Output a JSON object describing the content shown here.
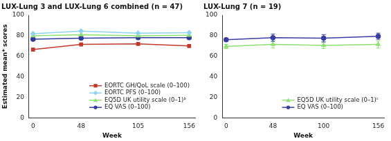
{
  "chart_data": [
    {
      "type": "line",
      "title": "LUX-Lung 3 and LUX-Lung 6 combined (n = 47)",
      "x_label": "Week",
      "y_label": "Estimated mean* scores",
      "x": [
        0,
        48,
        105,
        156
      ],
      "xlim": [
        -4,
        162
      ],
      "xticks": [
        0,
        48,
        105,
        156
      ],
      "ylim": [
        0,
        100
      ],
      "yticks": [
        0,
        20,
        40,
        60,
        80,
        100
      ],
      "grid": false,
      "legend": "lower right",
      "series": [
        {
          "name": "EORTC GH/QoL scale (0–100)",
          "color": "#c0392b",
          "marker": "square",
          "values": [
            66.5,
            71.5,
            72,
            70
          ]
        },
        {
          "name": "EORTC PFS (0–100)",
          "color": "#8fd3f0",
          "marker": "diamond",
          "values": [
            82,
            84.5,
            82.5,
            83
          ]
        },
        {
          "name": "EQ5D UK utility scale (0–1)ᵇ",
          "color": "#8ee070",
          "marker": "triangle",
          "values": [
            80,
            81,
            80,
            80.5
          ]
        },
        {
          "name": "EQ VAS (0–100)",
          "color": "#2e3c9a",
          "marker": "circle",
          "values": [
            76.5,
            77.5,
            78,
            78
          ]
        }
      ]
    },
    {
      "type": "line",
      "title": "LUX-Lung 7 (n = 19)",
      "x_label": "Week",
      "x": [
        0,
        48,
        100,
        156
      ],
      "xlim": [
        -4,
        162
      ],
      "xticks": [
        0,
        48,
        100,
        156
      ],
      "ylim": [
        0,
        100
      ],
      "yticks": [
        0,
        20,
        40,
        60,
        80,
        100
      ],
      "grid": false,
      "legend": "lower right",
      "series": [
        {
          "name": "EQ5D UK utility scale (0–1)ᶜ",
          "color": "#8ee070",
          "marker": "triangle",
          "values": [
            69.5,
            71.5,
            70.5,
            71.5
          ],
          "errors": [
            2,
            3.5,
            3,
            3.5
          ]
        },
        {
          "name": "EQ VAS (0–100)",
          "color": "#3a3ca0",
          "marker": "circle",
          "values": [
            76,
            78,
            77.5,
            79.5
          ],
          "errors": [
            1.5,
            3.5,
            3.5,
            3
          ]
        }
      ]
    }
  ]
}
